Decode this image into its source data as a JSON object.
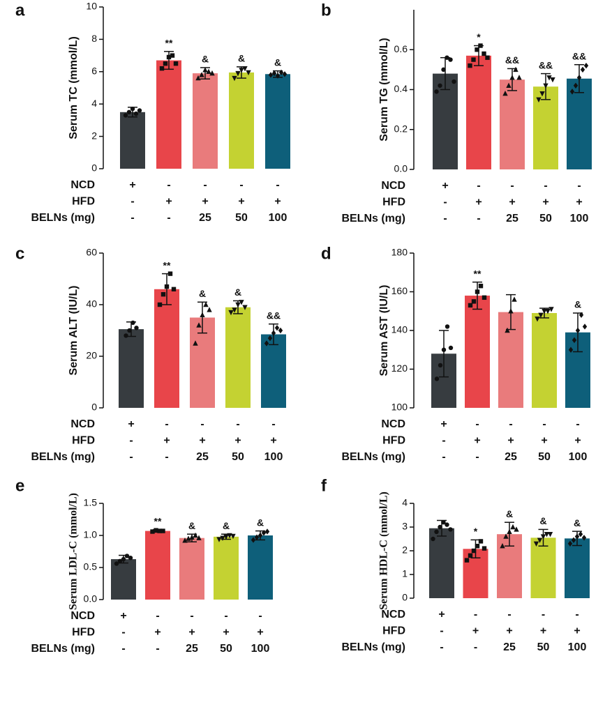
{
  "chart_data": [
    {
      "type": "bar",
      "panel": "a",
      "ylabel": "Serum TC (mmol/L)",
      "ylim": [
        0,
        10
      ],
      "yticks": [
        0,
        2,
        4,
        6,
        8,
        10
      ],
      "colors": [
        "#373c40",
        "#e8454a",
        "#e97b7c",
        "#c4d232",
        "#0e5f7a"
      ],
      "values": [
        3.5,
        6.7,
        5.9,
        5.95,
        5.85
      ],
      "errors": [
        0.3,
        0.55,
        0.35,
        0.35,
        0.2
      ],
      "annotations": [
        null,
        "**",
        "&",
        "&",
        "&"
      ],
      "points": [
        [
          3.3,
          3.5,
          3.7,
          3.4,
          3.6
        ],
        [
          6.2,
          6.5,
          6.9,
          7.0,
          6.5
        ],
        [
          5.6,
          5.8,
          6.1,
          6.0,
          5.9
        ],
        [
          5.6,
          5.9,
          6.1,
          6.2,
          5.95
        ],
        [
          5.8,
          5.9,
          5.75,
          5.95,
          5.85
        ]
      ],
      "group_rows": [
        {
          "label": "NCD",
          "values": [
            "+",
            "-",
            "-",
            "-",
            "-"
          ]
        },
        {
          "label": "HFD",
          "values": [
            "-",
            "+",
            "+",
            "+",
            "+"
          ]
        },
        {
          "label": "BELNs (mg)",
          "values": [
            "-",
            "-",
            "25",
            "50",
            "100"
          ]
        }
      ]
    },
    {
      "type": "bar",
      "panel": "b",
      "ylabel": "Serum TG (mmol/L)",
      "ylim": [
        0,
        0.8
      ],
      "yticks": [
        {
          "value": 0,
          "label": "0.0"
        },
        0.2,
        0.4,
        0.6
      ],
      "colors": [
        "#373c40",
        "#e8454a",
        "#e97b7c",
        "#c4d232",
        "#0e5f7a"
      ],
      "values": [
        0.48,
        0.57,
        0.45,
        0.415,
        0.455
      ],
      "errors": [
        0.08,
        0.05,
        0.055,
        0.065,
        0.07
      ],
      "annotations": [
        null,
        "*",
        "&&",
        "&&",
        "&&"
      ],
      "points": [
        [
          0.39,
          0.42,
          0.5,
          0.56,
          0.55,
          0.44
        ],
        [
          0.52,
          0.55,
          0.6,
          0.62,
          0.58,
          0.56
        ],
        [
          0.38,
          0.42,
          0.46,
          0.5,
          0.46
        ],
        [
          0.35,
          0.38,
          0.42,
          0.46,
          0.45
        ],
        [
          0.39,
          0.42,
          0.46,
          0.5,
          0.52
        ]
      ],
      "group_rows": [
        {
          "label": "NCD",
          "values": [
            "+",
            "-",
            "-",
            "-",
            "-"
          ]
        },
        {
          "label": "HFD",
          "values": [
            "-",
            "+",
            "+",
            "+",
            "+"
          ]
        },
        {
          "label": "BELNs (mg)",
          "values": [
            "-",
            "-",
            "25",
            "50",
            "100"
          ]
        }
      ]
    },
    {
      "type": "bar",
      "panel": "c",
      "ylabel": "Serum ALT (IU/L)",
      "ylim": [
        0,
        60
      ],
      "yticks": [
        0,
        20,
        40,
        60
      ],
      "colors": [
        "#373c40",
        "#e8454a",
        "#e97b7c",
        "#c4d232",
        "#0e5f7a"
      ],
      "values": [
        30.5,
        46,
        35,
        39,
        28.5
      ],
      "errors": [
        2.8,
        6,
        6,
        2.5,
        4
      ],
      "annotations": [
        null,
        "**",
        "&",
        "&",
        "&&"
      ],
      "points": [
        [
          28,
          30,
          33,
          31
        ],
        [
          40,
          44,
          47,
          52,
          46
        ],
        [
          25,
          32,
          36,
          40,
          38
        ],
        [
          37,
          38,
          40,
          41,
          39
        ],
        [
          25,
          27,
          29,
          31,
          30
        ]
      ],
      "group_rows": [
        {
          "label": "NCD",
          "values": [
            "+",
            "-",
            "-",
            "-",
            "-"
          ]
        },
        {
          "label": "HFD",
          "values": [
            "-",
            "+",
            "+",
            "+",
            "+"
          ]
        },
        {
          "label": "BELNs (mg)",
          "values": [
            "-",
            "-",
            "25",
            "50",
            "100"
          ]
        }
      ]
    },
    {
      "type": "bar",
      "panel": "d",
      "ylabel": "Serum AST (IU/L)",
      "ylim": [
        100,
        180
      ],
      "yticks": [
        100,
        120,
        140,
        160,
        180
      ],
      "colors": [
        "#373c40",
        "#e8454a",
        "#e97b7c",
        "#c4d232",
        "#0e5f7a"
      ],
      "values": [
        128,
        158,
        149.5,
        149,
        139
      ],
      "errors": [
        12,
        7,
        9,
        2.5,
        10
      ],
      "annotations": [
        null,
        "**",
        null,
        null,
        "&"
      ],
      "points": [
        [
          115,
          122,
          130,
          142,
          131
        ],
        [
          153,
          155,
          160,
          163,
          157
        ],
        [
          140,
          150,
          156
        ],
        [
          146,
          148,
          150,
          150,
          151
        ],
        [
          130,
          135,
          140,
          148,
          142
        ]
      ],
      "group_rows": [
        {
          "label": "NCD",
          "values": [
            "+",
            "-",
            "-",
            "-",
            "-"
          ]
        },
        {
          "label": "HFD",
          "values": [
            "-",
            "+",
            "+",
            "+",
            "+"
          ]
        },
        {
          "label": "BELNs (mg)",
          "values": [
            "-",
            "-",
            "25",
            "50",
            "100"
          ]
        }
      ]
    },
    {
      "type": "bar",
      "panel": "e",
      "ylabel": "Serum LDL-C  (mmol/L)",
      "ylim": [
        0,
        1.5
      ],
      "yticks": [
        {
          "value": 0,
          "label": "0.0"
        },
        0.5,
        {
          "value": 1,
          "label": "1.0"
        },
        1.5
      ],
      "colors": [
        "#373c40",
        "#e8454a",
        "#e97b7c",
        "#c4d232",
        "#0e5f7a"
      ],
      "values": [
        0.63,
        1.07,
        0.96,
        0.98,
        1.0
      ],
      "errors": [
        0.06,
        0.02,
        0.06,
        0.04,
        0.07
      ],
      "annotations": [
        null,
        "**",
        "&",
        "&",
        "&"
      ],
      "points": [
        [
          0.56,
          0.6,
          0.63,
          0.68,
          0.65
        ],
        [
          1.06,
          1.08,
          1.07,
          1.07
        ],
        [
          0.92,
          0.95,
          0.97,
          1.0,
          0.96
        ],
        [
          0.94,
          0.96,
          0.98,
          1.0,
          0.99
        ],
        [
          0.93,
          0.97,
          1.0,
          1.04,
          1.06
        ]
      ],
      "group_rows": [
        {
          "label": "NCD",
          "values": [
            "+",
            "-",
            "-",
            "-",
            "-"
          ]
        },
        {
          "label": "HFD",
          "values": [
            "-",
            "+",
            "+",
            "+",
            "+"
          ]
        },
        {
          "label": "BELNs (mg)",
          "values": [
            "-",
            "-",
            "25",
            "50",
            "100"
          ]
        }
      ]
    },
    {
      "type": "bar",
      "panel": "f",
      "ylabel": "Serum HDL-C  (mmol/L)",
      "ylim": [
        0,
        4
      ],
      "yticks": [
        0,
        1,
        2,
        3,
        4
      ],
      "colors": [
        "#373c40",
        "#e8454a",
        "#e97b7c",
        "#c4d232",
        "#0e5f7a"
      ],
      "values": [
        2.95,
        2.08,
        2.7,
        2.55,
        2.52
      ],
      "errors": [
        0.33,
        0.38,
        0.5,
        0.35,
        0.3
      ],
      "annotations": [
        null,
        "*",
        "&",
        "&",
        "&"
      ],
      "points": [
        [
          2.5,
          2.8,
          3.0,
          3.2,
          3.1,
          2.9
        ],
        [
          1.6,
          1.8,
          2.0,
          2.2,
          2.4,
          2.1
        ],
        [
          2.2,
          2.6,
          2.8,
          3.0,
          2.9
        ],
        [
          2.3,
          2.45,
          2.6,
          2.7,
          2.7
        ],
        [
          2.3,
          2.45,
          2.6,
          2.7,
          2.55
        ]
      ],
      "group_rows": [
        {
          "label": "NCD",
          "values": [
            "+",
            "-",
            "-",
            "-",
            "-"
          ]
        },
        {
          "label": "HFD",
          "values": [
            "-",
            "+",
            "+",
            "+",
            "+"
          ]
        },
        {
          "label": "BELNs (mg)",
          "values": [
            "-",
            "-",
            "25",
            "50",
            "100"
          ]
        }
      ]
    }
  ]
}
